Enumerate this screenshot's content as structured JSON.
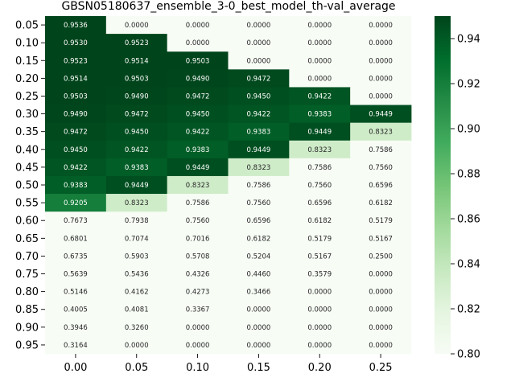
{
  "chart_data": {
    "type": "heatmap",
    "title": "GBSN05180637_ensemble_3-0_best_model_th-val_average",
    "xlabel": "",
    "ylabel": "",
    "x_categories": [
      "0.00",
      "0.05",
      "0.10",
      "0.15",
      "0.20",
      "0.25"
    ],
    "y_categories": [
      "0.05",
      "0.10",
      "0.15",
      "0.20",
      "0.25",
      "0.30",
      "0.35",
      "0.40",
      "0.45",
      "0.50",
      "0.55",
      "0.60",
      "0.65",
      "0.70",
      "0.75",
      "0.80",
      "0.85",
      "0.90",
      "0.95"
    ],
    "values": [
      [
        0.9536,
        0.0,
        0.0,
        0.0,
        0.0,
        0.0
      ],
      [
        0.953,
        0.9523,
        0.0,
        0.0,
        0.0,
        0.0
      ],
      [
        0.9523,
        0.9514,
        0.9503,
        0.0,
        0.0,
        0.0
      ],
      [
        0.9514,
        0.9503,
        0.949,
        0.9472,
        0.0,
        0.0
      ],
      [
        0.9503,
        0.949,
        0.9472,
        0.945,
        0.9422,
        0.0
      ],
      [
        0.949,
        0.9472,
        0.945,
        0.9422,
        0.9383,
        0.9449
      ],
      [
        0.9472,
        0.945,
        0.9422,
        0.9383,
        0.9449,
        0.8323
      ],
      [
        0.945,
        0.9422,
        0.9383,
        0.9449,
        0.8323,
        0.7586
      ],
      [
        0.9422,
        0.9383,
        0.9449,
        0.8323,
        0.7586,
        0.756
      ],
      [
        0.9383,
        0.9449,
        0.8323,
        0.7586,
        0.756,
        0.6596
      ],
      [
        0.9205,
        0.8323,
        0.7586,
        0.756,
        0.6596,
        0.6182
      ],
      [
        0.7673,
        0.7938,
        0.756,
        0.6596,
        0.6182,
        0.5179
      ],
      [
        0.6801,
        0.7074,
        0.7016,
        0.6182,
        0.5179,
        0.5167
      ],
      [
        0.6735,
        0.5903,
        0.5708,
        0.5204,
        0.5167,
        0.25
      ],
      [
        0.5639,
        0.5436,
        0.4326,
        0.446,
        0.3579,
        0.0
      ],
      [
        0.5146,
        0.4162,
        0.4273,
        0.3466,
        0.0,
        0.0
      ],
      [
        0.4005,
        0.4081,
        0.3367,
        0.0,
        0.0,
        0.0
      ],
      [
        0.3946,
        0.326,
        0.0,
        0.0,
        0.0,
        0.0
      ],
      [
        0.3164,
        0.0,
        0.0,
        0.0,
        0.0,
        0.0
      ]
    ],
    "value_format_decimals": 4,
    "color_scale": {
      "vmin": 0.8,
      "vmax": 0.95,
      "colormap": "Greens",
      "low_color": "#f7fcf5",
      "high_color": "#00441b"
    },
    "colorbar": {
      "ticks": [
        0.8,
        0.82,
        0.84,
        0.86,
        0.88,
        0.9,
        0.92,
        0.94
      ],
      "tick_labels": [
        "0.80",
        "0.82",
        "0.84",
        "0.86",
        "0.88",
        "0.90",
        "0.92",
        "0.94"
      ]
    },
    "grid": false,
    "legend": "colorbar-right"
  }
}
